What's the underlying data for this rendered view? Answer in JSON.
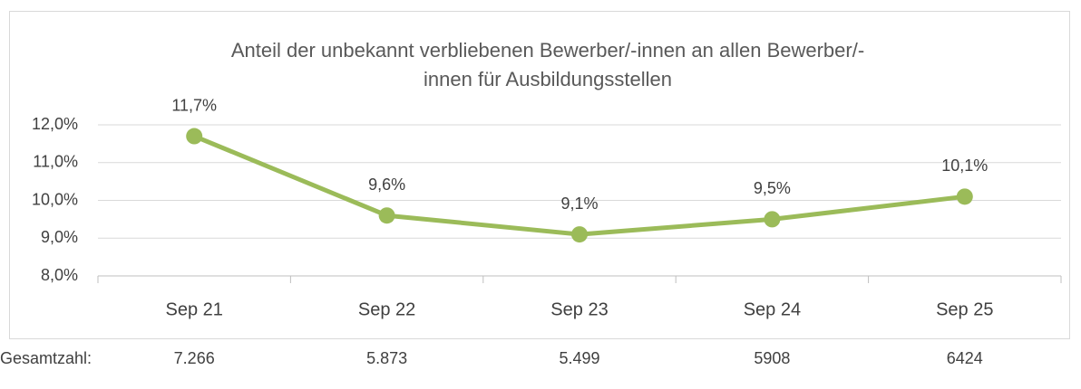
{
  "chart_data": {
    "type": "line",
    "title": [
      "Anteil der unbekannt verbliebenen Bewerber/-innen an allen Bewerber/-",
      "innen für Ausbildungsstellen"
    ],
    "categories": [
      "Sep 21",
      "Sep 22",
      "Sep 23",
      "Sep 24",
      "Sep 25"
    ],
    "values": [
      11.7,
      9.6,
      9.1,
      9.5,
      10.1
    ],
    "value_labels": [
      "11,7%",
      "9,6%",
      "9,1%",
      "9,5%",
      "10,1%"
    ],
    "color": "#9bbb59",
    "ylim": [
      8,
      12
    ],
    "yticks": [
      {
        "value": 8,
        "label": "8,0%"
      },
      {
        "value": 9,
        "label": "9,0%"
      },
      {
        "value": 10,
        "label": "10,0%"
      },
      {
        "value": 11,
        "label": "11,0%"
      },
      {
        "value": 12,
        "label": "12,0%"
      }
    ],
    "grid": true
  },
  "totals": {
    "label": "Gesamtzahl:",
    "values": [
      "7.266",
      "5.873",
      "5.499",
      "5908",
      "6424"
    ]
  }
}
